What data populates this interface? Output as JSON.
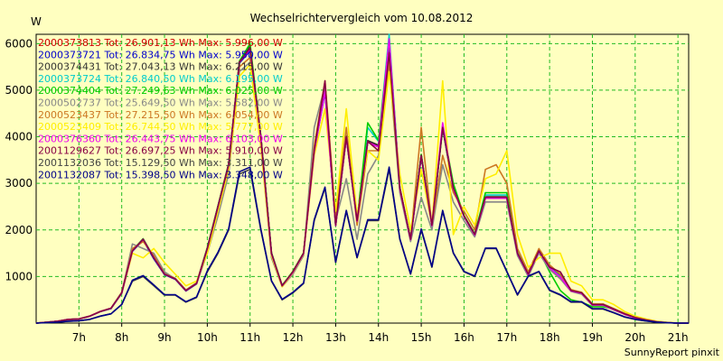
{
  "chart_data": {
    "type": "line",
    "title": "Wechselrichtervergleich vom 10.08.2012",
    "ylabel": "W",
    "xlabel": "",
    "credit": "SunnyReport pinxit",
    "ylim": [
      0,
      6200
    ],
    "xlim": [
      6.0,
      21.25
    ],
    "yticks": [
      1000,
      2000,
      3000,
      4000,
      5000,
      6000
    ],
    "xticks": [
      {
        "v": 7,
        "label": "7h"
      },
      {
        "v": 8,
        "label": "8h"
      },
      {
        "v": 9,
        "label": "9h"
      },
      {
        "v": 10,
        "label": "10h"
      },
      {
        "v": 11,
        "label": "11h"
      },
      {
        "v": 12,
        "label": "12h"
      },
      {
        "v": 13,
        "label": "13h"
      },
      {
        "v": 14,
        "label": "14h"
      },
      {
        "v": 15,
        "label": "15h"
      },
      {
        "v": 16,
        "label": "16h"
      },
      {
        "v": 17,
        "label": "17h"
      },
      {
        "v": 18,
        "label": "18h"
      },
      {
        "v": 19,
        "label": "19h"
      },
      {
        "v": 20,
        "label": "20h"
      },
      {
        "v": 21,
        "label": "21h"
      }
    ],
    "grid": true,
    "legend_position": "top-left",
    "x": [
      6.0,
      6.25,
      6.5,
      6.75,
      7.0,
      7.25,
      7.5,
      7.75,
      8.0,
      8.25,
      8.5,
      8.75,
      9.0,
      9.25,
      9.5,
      9.75,
      10.0,
      10.25,
      10.5,
      10.75,
      11.0,
      11.25,
      11.5,
      11.75,
      12.0,
      12.25,
      12.5,
      12.75,
      13.0,
      13.25,
      13.5,
      13.75,
      14.0,
      14.25,
      14.5,
      14.75,
      15.0,
      15.25,
      15.5,
      15.75,
      16.0,
      16.25,
      16.5,
      16.75,
      17.0,
      17.25,
      17.5,
      17.75,
      18.0,
      18.25,
      18.5,
      18.75,
      19.0,
      19.25,
      19.5,
      19.75,
      20.0,
      20.25,
      20.5,
      20.75,
      21.0,
      21.25
    ],
    "series": [
      {
        "name": "2000373813 Tot: 26.901,13 Wh Max: 5.996,00 W",
        "color": "#cc0000",
        "values": [
          0,
          20,
          40,
          80,
          90,
          150,
          250,
          320,
          650,
          1550,
          1800,
          1400,
          1050,
          950,
          700,
          850,
          1600,
          2500,
          3400,
          5600,
          5900,
          4000,
          1500,
          800,
          1100,
          1500,
          3700,
          5000,
          2100,
          4000,
          2200,
          3900,
          3800,
          5900,
          2900,
          1800,
          3600,
          2100,
          4200,
          2900,
          2300,
          1900,
          2700,
          2700,
          2700,
          1500,
          1050,
          1550,
          1200,
          1000,
          700,
          650,
          400,
          400,
          300,
          200,
          120,
          70,
          30,
          10,
          0,
          0
        ]
      },
      {
        "name": "2000373721 Tot: 26.834,75 Wh Max: 5.950,00 W",
        "color": "#0000cc",
        "values": [
          0,
          20,
          40,
          75,
          85,
          145,
          245,
          310,
          640,
          1540,
          1780,
          1380,
          1040,
          940,
          690,
          840,
          1580,
          2480,
          3380,
          5580,
          5850,
          3980,
          1490,
          800,
          1090,
          1490,
          3680,
          4950,
          2090,
          3980,
          2190,
          3880,
          3780,
          5850,
          2880,
          1790,
          3580,
          2090,
          4180,
          2880,
          2290,
          1890,
          2680,
          2680,
          2680,
          1490,
          1040,
          1540,
          1190,
          990,
          690,
          640,
          390,
          390,
          290,
          190,
          115,
          65,
          30,
          10,
          0,
          0
        ]
      },
      {
        "name": "2000374431 Tot: 27.043,13 Wh Max: 6.215,00 W",
        "color": "#333333",
        "values": [
          0,
          20,
          40,
          80,
          90,
          150,
          250,
          320,
          660,
          1560,
          1810,
          1400,
          1060,
          960,
          710,
          860,
          1620,
          2520,
          3420,
          5620,
          5950,
          4020,
          1510,
          810,
          1110,
          1510,
          3720,
          5050,
          2120,
          4020,
          2210,
          3920,
          3820,
          6100,
          2910,
          1810,
          3620,
          2110,
          4220,
          2910,
          2310,
          1910,
          2710,
          2710,
          2710,
          1510,
          1060,
          1560,
          1210,
          1010,
          710,
          660,
          410,
          410,
          310,
          210,
          125,
          75,
          35,
          12,
          0,
          0
        ]
      },
      {
        "name": "2000373724 Tot: 26.840,50 Wh Max: 6.195,00 W",
        "color": "#00cccc",
        "values": [
          0,
          20,
          40,
          80,
          90,
          150,
          250,
          320,
          650,
          1550,
          1800,
          1400,
          1050,
          950,
          700,
          850,
          1600,
          2500,
          3400,
          5600,
          5900,
          4000,
          1500,
          800,
          1100,
          1500,
          3700,
          5000,
          2100,
          4000,
          2200,
          4200,
          3900,
          6200,
          2900,
          1800,
          3600,
          2100,
          4200,
          2900,
          2300,
          1900,
          2750,
          2750,
          2750,
          1500,
          1050,
          1550,
          1200,
          1000,
          700,
          650,
          400,
          400,
          300,
          200,
          120,
          70,
          30,
          10,
          0,
          0
        ]
      },
      {
        "name": "2000374404 Tot: 27.249,63 Wh Max: 6.025,00 W",
        "color": "#00cc00",
        "values": [
          0,
          20,
          40,
          80,
          90,
          150,
          250,
          320,
          660,
          1560,
          1810,
          1410,
          1060,
          960,
          710,
          860,
          1620,
          2520,
          3420,
          5620,
          6000,
          4020,
          1510,
          810,
          1110,
          1510,
          3720,
          5050,
          2120,
          4020,
          2210,
          4300,
          3920,
          6050,
          2910,
          1810,
          3620,
          2110,
          4220,
          3000,
          2310,
          1910,
          2800,
          2800,
          2800,
          1510,
          1060,
          1560,
          1100,
          700,
          500,
          450,
          350,
          350,
          300,
          200,
          125,
          75,
          35,
          12,
          0,
          0
        ]
      },
      {
        "name": "2000502737 Tot: 25.649,50 Wh Max: 5.582,00 W",
        "color": "#888888",
        "values": [
          0,
          20,
          40,
          80,
          90,
          150,
          250,
          320,
          650,
          1700,
          1600,
          1500,
          1100,
          950,
          700,
          850,
          1500,
          2300,
          3200,
          5400,
          5600,
          3800,
          1400,
          780,
          1050,
          1450,
          4200,
          5100,
          2200,
          3100,
          1800,
          3200,
          3600,
          5500,
          2800,
          1750,
          2700,
          2000,
          3400,
          2600,
          2200,
          1850,
          2600,
          2600,
          2600,
          1450,
          1000,
          1500,
          1150,
          950,
          680,
          620,
          380,
          380,
          280,
          190,
          110,
          65,
          28,
          10,
          0,
          0
        ]
      },
      {
        "name": "2000523437 Tot: 27.215,50 Wh Max: 6.054,00 W",
        "color": "#cc7722",
        "values": [
          0,
          20,
          40,
          80,
          90,
          150,
          250,
          320,
          660,
          1600,
          1750,
          1450,
          1060,
          960,
          710,
          860,
          1600,
          2500,
          3400,
          5500,
          5700,
          3900,
          1480,
          800,
          1100,
          1500,
          3800,
          5200,
          2300,
          4200,
          2100,
          3700,
          3700,
          5600,
          2900,
          1800,
          4200,
          2100,
          3600,
          2800,
          2400,
          2000,
          3300,
          3400,
          3000,
          1600,
          1100,
          1600,
          1250,
          1050,
          720,
          660,
          410,
          410,
          310,
          210,
          125,
          75,
          35,
          12,
          0,
          0
        ]
      },
      {
        "name": "2000523409 Tot: 26.744,50 Wh Max: 5.777,00 W",
        "color": "#ffee00",
        "values": [
          0,
          20,
          40,
          80,
          90,
          150,
          250,
          320,
          650,
          1500,
          1400,
          1600,
          1300,
          1050,
          800,
          900,
          1500,
          2400,
          3300,
          5300,
          5550,
          3800,
          1450,
          780,
          1080,
          1480,
          3600,
          4600,
          2400,
          4600,
          2300,
          3700,
          3500,
          5400,
          3200,
          2000,
          3300,
          2100,
          5200,
          1900,
          2500,
          2100,
          3100,
          3200,
          3700,
          1900,
          1200,
          1400,
          1500,
          1500,
          900,
          800,
          500,
          500,
          400,
          250,
          150,
          90,
          40,
          15,
          0,
          0
        ]
      },
      {
        "name": "2000376360 Tot: 26.443,75 Wh Max: 6.103,00 W",
        "color": "#ee00ee",
        "values": [
          0,
          20,
          40,
          80,
          90,
          150,
          250,
          320,
          650,
          1550,
          1800,
          1400,
          1050,
          950,
          700,
          850,
          1600,
          2500,
          3400,
          5600,
          5880,
          3980,
          1490,
          800,
          1090,
          1490,
          3680,
          4980,
          2090,
          3980,
          2190,
          3880,
          3780,
          6103,
          2880,
          1790,
          3580,
          2090,
          4300,
          2880,
          2290,
          1890,
          2680,
          2680,
          2680,
          1490,
          1040,
          1540,
          1190,
          990,
          690,
          640,
          390,
          390,
          290,
          190,
          115,
          65,
          30,
          10,
          0,
          0
        ]
      },
      {
        "name": "2001129627 Tot: 26.697,25 Wh Max: 5.910,00 W",
        "color": "#880044",
        "values": [
          0,
          20,
          40,
          80,
          90,
          150,
          250,
          320,
          650,
          1550,
          1800,
          1400,
          1050,
          950,
          700,
          850,
          1600,
          2500,
          3400,
          5600,
          5910,
          4000,
          1500,
          800,
          1100,
          1500,
          3700,
          5200,
          2100,
          4000,
          2200,
          3900,
          3700,
          5800,
          2900,
          1800,
          3600,
          2100,
          4200,
          2900,
          2300,
          1900,
          2700,
          2700,
          2700,
          1500,
          1050,
          1550,
          1200,
          1100,
          700,
          650,
          400,
          400,
          300,
          200,
          120,
          70,
          30,
          10,
          0,
          0
        ]
      },
      {
        "name": "2001132036 Tot: 15.129,50 Wh Max: 3.311,00 W",
        "color": "#444444",
        "values": [
          0,
          10,
          20,
          40,
          50,
          80,
          150,
          200,
          400,
          900,
          1000,
          800,
          600,
          600,
          450,
          550,
          1100,
          1500,
          2000,
          3200,
          3300,
          2000,
          900,
          500,
          650,
          850,
          2200,
          2900,
          1300,
          2400,
          1400,
          2200,
          2200,
          3300,
          1800,
          1050,
          2000,
          1200,
          2400,
          1500,
          1100,
          1000,
          1600,
          1600,
          1100,
          600,
          1000,
          1100,
          700,
          600,
          450,
          450,
          300,
          300,
          220,
          130,
          80,
          45,
          20,
          8,
          0,
          0
        ]
      },
      {
        "name": "2001132087 Tot: 15.398,50 Wh Max: 3.348,00 W",
        "color": "#000088",
        "values": [
          0,
          10,
          20,
          40,
          50,
          80,
          150,
          200,
          400,
          920,
          1020,
          820,
          610,
          610,
          460,
          560,
          1120,
          1520,
          2020,
          3250,
          3348,
          2020,
          910,
          510,
          660,
          860,
          2220,
          2920,
          1310,
          2420,
          1410,
          2220,
          2220,
          3348,
          1810,
          1060,
          2020,
          1210,
          2420,
          1510,
          1110,
          1010,
          1610,
          1610,
          1110,
          610,
          1010,
          1110,
          710,
          610,
          460,
          460,
          310,
          310,
          225,
          135,
          82,
          46,
          21,
          8,
          0,
          0
        ]
      }
    ]
  }
}
